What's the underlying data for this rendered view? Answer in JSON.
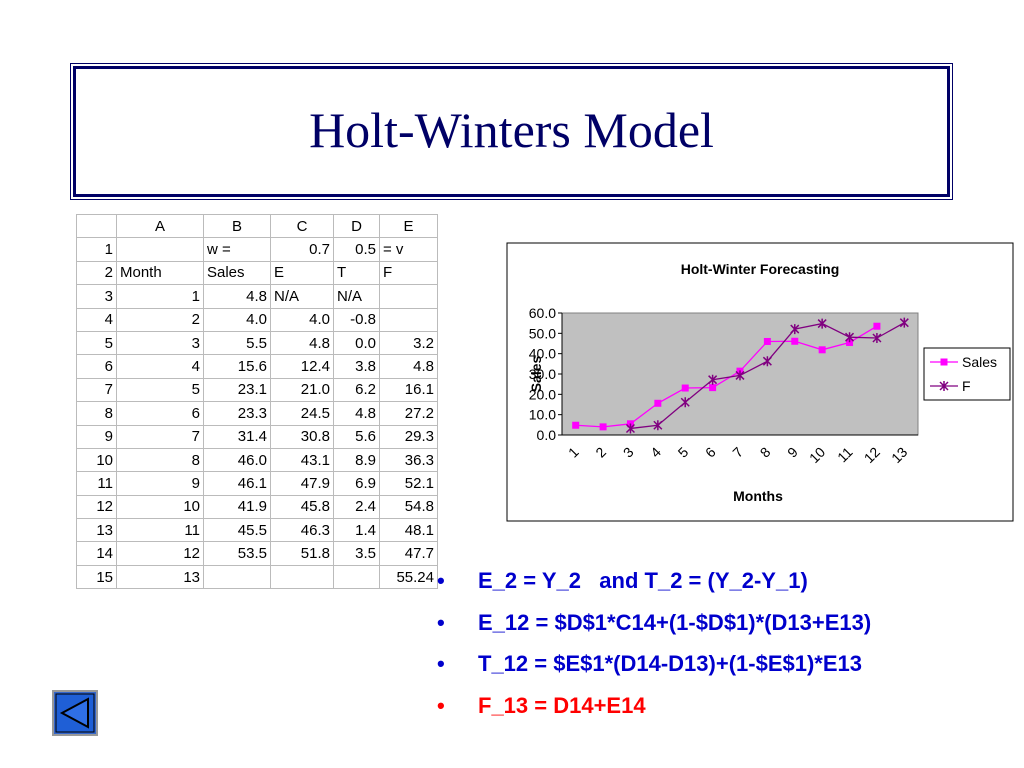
{
  "title": "Holt-Winters Model",
  "table": {
    "header": [
      null,
      "A",
      "B",
      "C",
      "D",
      "E"
    ],
    "rows": [
      [
        "1",
        null,
        "w =",
        "0.7",
        "0.5",
        "= v"
      ],
      [
        "2",
        "Month",
        "Sales",
        "E",
        "T",
        "F"
      ],
      [
        "3",
        "1",
        "4.8",
        "N/A",
        "N/A",
        null
      ],
      [
        "4",
        "2",
        "4.0",
        "4.0",
        "-0.8",
        null
      ],
      [
        "5",
        "3",
        "5.5",
        "4.8",
        "0.0",
        "3.2"
      ],
      [
        "6",
        "4",
        "15.6",
        "12.4",
        "3.8",
        "4.8"
      ],
      [
        "7",
        "5",
        "23.1",
        "21.0",
        "6.2",
        "16.1"
      ],
      [
        "8",
        "6",
        "23.3",
        "24.5",
        "4.8",
        "27.2"
      ],
      [
        "9",
        "7",
        "31.4",
        "30.8",
        "5.6",
        "29.3"
      ],
      [
        "10",
        "8",
        "46.0",
        "43.1",
        "8.9",
        "36.3"
      ],
      [
        "11",
        "9",
        "46.1",
        "47.9",
        "6.9",
        "52.1"
      ],
      [
        "12",
        "10",
        "41.9",
        "45.8",
        "2.4",
        "54.8"
      ],
      [
        "13",
        "11",
        "45.5",
        "46.3",
        "1.4",
        "48.1"
      ],
      [
        "14",
        "12",
        "53.5",
        "51.8",
        "3.5",
        "47.7"
      ],
      [
        "15",
        "13",
        null,
        null,
        null,
        "55.24"
      ]
    ]
  },
  "chart_data": {
    "type": "line",
    "title": "Holt-Winter Forecasting",
    "x_label": "Months",
    "y_label": "Sales",
    "categories": [
      "1",
      "2",
      "3",
      "4",
      "5",
      "6",
      "7",
      "8",
      "9",
      "10",
      "11",
      "12",
      "13"
    ],
    "series": [
      {
        "name": "Sales",
        "color": "#ff00ff",
        "marker": "square",
        "values": [
          4.8,
          4.0,
          5.5,
          15.6,
          23.1,
          23.3,
          31.4,
          46.0,
          46.1,
          41.9,
          45.5,
          53.5,
          null
        ]
      },
      {
        "name": "F",
        "color": "#800080",
        "marker": "star",
        "values": [
          null,
          null,
          3.2,
          4.8,
          16.1,
          27.2,
          29.3,
          36.3,
          52.1,
          54.8,
          48.1,
          47.7,
          55.24
        ]
      }
    ],
    "ylim": [
      0,
      60
    ],
    "yticks": [
      {
        "value": 0,
        "label": "0.0"
      },
      {
        "value": 10,
        "label": "10.0"
      },
      {
        "value": 20,
        "label": "20.0"
      },
      {
        "value": 30,
        "label": "30.0"
      },
      {
        "value": 40,
        "label": "40.0"
      },
      {
        "value": 50,
        "label": "50.0"
      },
      {
        "value": 60,
        "label": "60.0"
      }
    ],
    "grid": false,
    "legend": "right",
    "plot_background": "#c0c0c0"
  },
  "bullets": [
    {
      "text": "E_2 = Y_2   and T_2 = (Y_2-Y_1)",
      "color": "#0000cc"
    },
    {
      "text": "E_12 = $D$1*C14+(1-$D$1)*(D13+E13)",
      "color": "#0000cc"
    },
    {
      "text": "T_12 = $E$1*(D14-D13)+(1-$E$1)*E13",
      "color": "#0000cc"
    },
    {
      "text": "F_13 = D14+E14",
      "color": "#ff0000"
    }
  ]
}
